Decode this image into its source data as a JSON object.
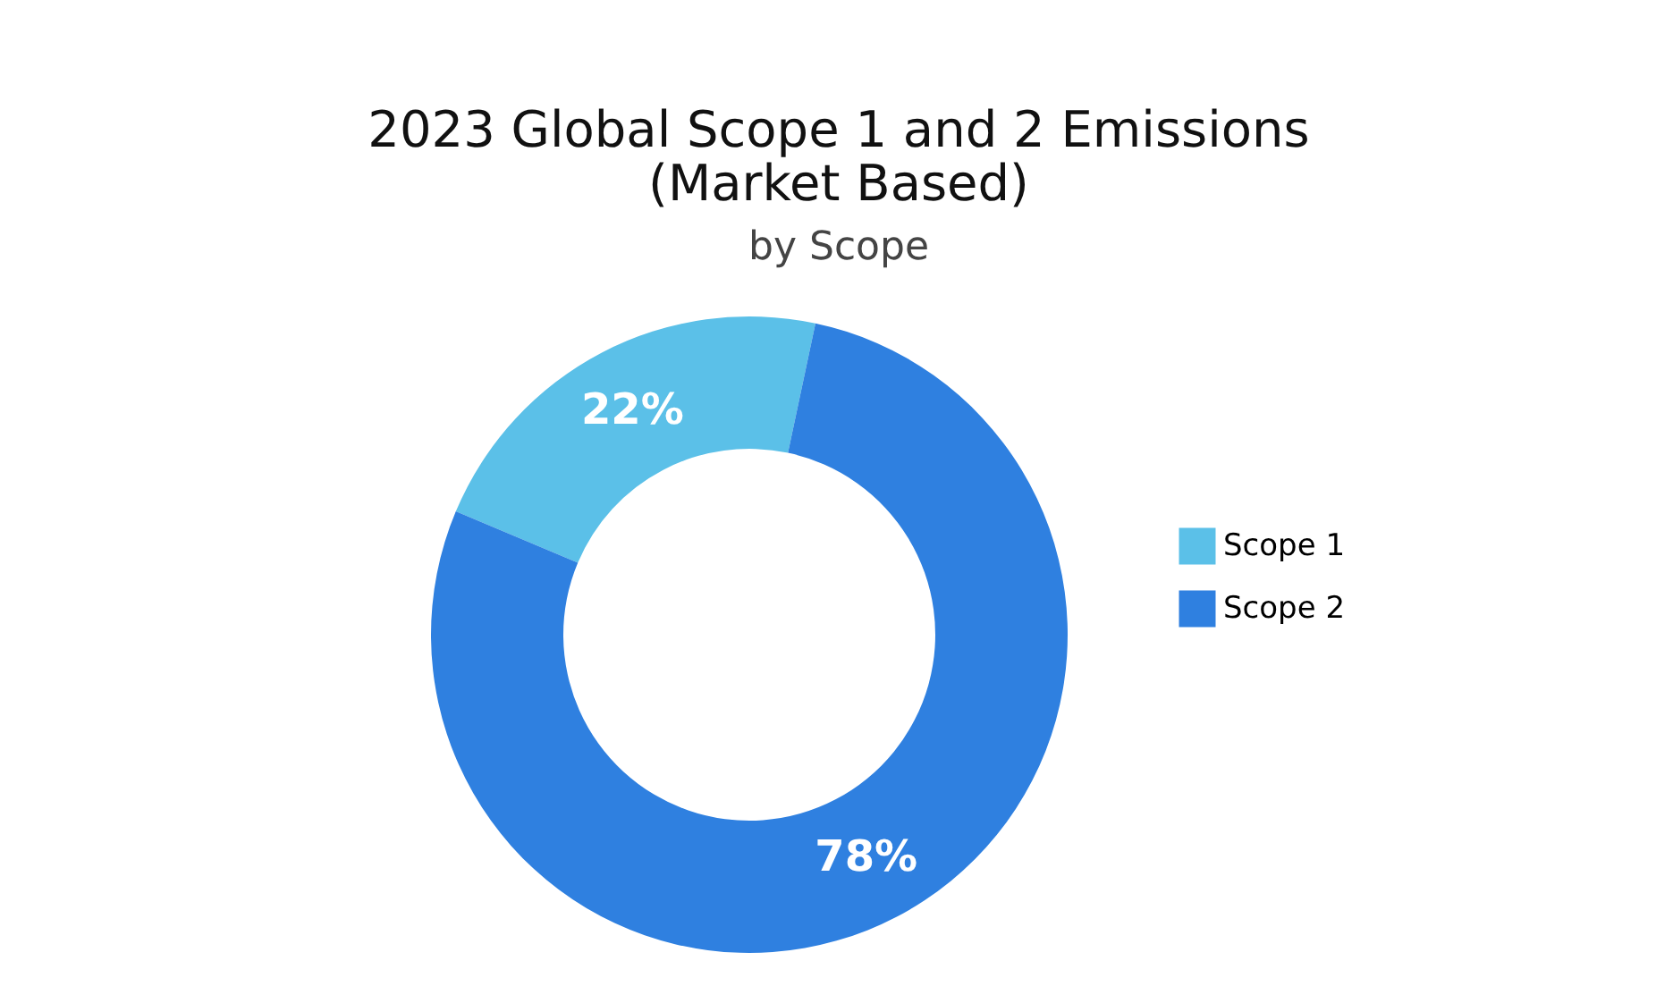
{
  "chart_data": {
    "type": "donut",
    "title": "2023 Global Scope 1 and 2 Emissions\n(Market Based)",
    "subtitle": "by Scope",
    "categories": [
      "Scope 1",
      "Scope 2"
    ],
    "values": [
      22,
      78
    ],
    "colors": [
      "#5bc0e8",
      "#2f80e0"
    ],
    "value_labels": [
      "22%",
      "78%"
    ],
    "legend": "right"
  }
}
